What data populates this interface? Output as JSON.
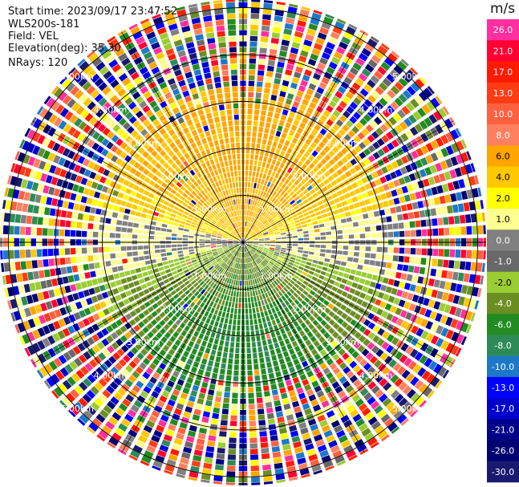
{
  "info": {
    "start_time": "Start time: 2023/09/17 23:47:52",
    "station": "WLS200s-181",
    "field": "Field: VEL",
    "elevation": "Elevation(deg): 35.30",
    "nrays": "NRays: 120"
  },
  "colorbar": {
    "unit": "m/s",
    "labels": [
      "26.0",
      "21.0",
      "17.0",
      "13.0",
      "10.0",
      "8.0",
      "6.0",
      "4.0",
      "2.0",
      "1.0",
      "0.0",
      "-1.0",
      "-2.0",
      "-4.0",
      "-6.0",
      "-8.0",
      "-10.0",
      "-13.0",
      "-17.0",
      "-21.0",
      "-26.0",
      "-30.0"
    ],
    "colors": [
      "#ff2f9f",
      "#ff0033",
      "#ff1a00",
      "#ff3c14",
      "#ff6040",
      "#ff8060",
      "#ffa500",
      "#ffc800",
      "#ffff00",
      "#ffff90",
      "#808080",
      "#686868",
      "#9acd32",
      "#6b8e23",
      "#228b22",
      "#2e8b57",
      "#1e78c8",
      "#0000ff",
      "#0000cd",
      "#00008b",
      "#000070",
      "#191970"
    ]
  },
  "chart_data": {
    "type": "ppi",
    "field": "VEL",
    "unit": "m/s",
    "range_ring_labels": [
      "1.00km",
      "2.00km",
      "3.00km",
      "4.00km",
      "5.00km"
    ],
    "legend_placement": "right",
    "pattern": {
      "north_half": "positive velocities 1 to 6 m/s (yellow/orange), highest near center-north",
      "south_half": "negative velocities -2 to -8 m/s (green)",
      "east_west": "near 0 m/s (gray)",
      "outer_ranges": "noisy, all colors"
    }
  }
}
